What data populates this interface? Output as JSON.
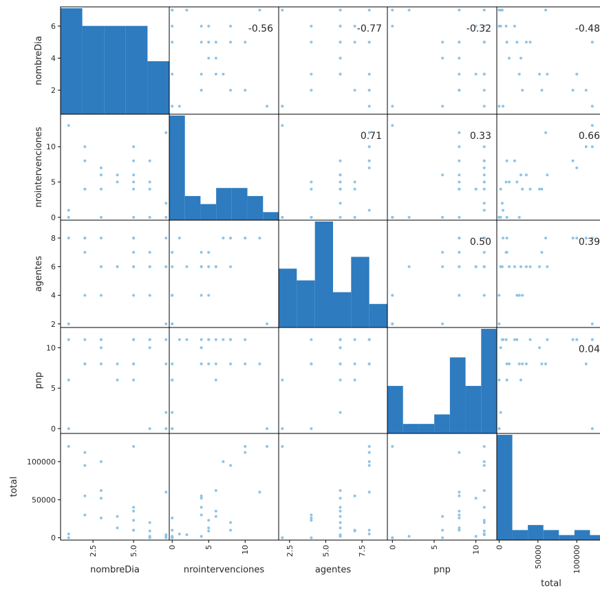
{
  "chart_data": {
    "type": "scatter_matrix",
    "variables": [
      "nombreDia",
      "nrointervenciones",
      "agentes",
      "pnp",
      "total"
    ],
    "colors": {
      "bar": "#2e7bbf",
      "point": "#8ec4e4",
      "frame": "#000000"
    },
    "ranges": [
      [
        0.5,
        7.2
      ],
      [
        -0.4,
        14.6
      ],
      [
        1.75,
        9.25
      ],
      [
        -0.6,
        12.5
      ],
      [
        -3000,
        137000
      ]
    ],
    "ticks": [
      [
        {
          "v": 2,
          "t": "2"
        },
        {
          "v": 4,
          "t": "4"
        },
        {
          "v": 6,
          "t": "6"
        }
      ],
      [
        {
          "v": 0,
          "t": "0"
        },
        {
          "v": 5,
          "t": "5"
        },
        {
          "v": 10,
          "t": "10"
        }
      ],
      [
        {
          "v": 2,
          "t": "2"
        },
        {
          "v": 4,
          "t": "4"
        },
        {
          "v": 6,
          "t": "6"
        },
        {
          "v": 8,
          "t": "8"
        }
      ],
      [
        {
          "v": 0,
          "t": "0"
        },
        {
          "v": 5,
          "t": "5"
        },
        {
          "v": 10,
          "t": "10"
        }
      ],
      [
        {
          "v": 0,
          "t": "0"
        },
        {
          "v": 50000,
          "t": "50000"
        },
        {
          "v": 100000,
          "t": "100000"
        }
      ]
    ],
    "xticks": [
      [
        {
          "v": 2.5,
          "t": "2.5"
        },
        {
          "v": 5.0,
          "t": "5.0"
        }
      ],
      [
        {
          "v": 0,
          "t": "0"
        },
        {
          "v": 5,
          "t": "5"
        },
        {
          "v": 10,
          "t": "10"
        }
      ],
      [
        {
          "v": 2.5,
          "t": "2.5"
        },
        {
          "v": 5.0,
          "t": "5.0"
        },
        {
          "v": 7.5,
          "t": "7.5"
        }
      ],
      [
        {
          "v": 0,
          "t": "0"
        },
        {
          "v": 5,
          "t": "5"
        },
        {
          "v": 10,
          "t": "10"
        }
      ],
      [
        {
          "v": 0,
          "t": "0"
        },
        {
          "v": 50000,
          "t": "50000"
        },
        {
          "v": 100000,
          "t": "100000"
        }
      ]
    ],
    "histograms": [
      [
        6,
        5,
        5,
        5,
        3
      ],
      [
        13,
        3,
        2,
        4,
        4,
        3,
        1
      ],
      [
        5,
        4,
        9,
        3,
        6,
        2
      ],
      [
        5,
        1,
        1,
        2,
        8,
        5,
        11
      ],
      [
        21,
        2,
        3,
        2,
        1,
        2,
        1
      ]
    ],
    "correlations": [
      {
        "row": 0,
        "col": 1,
        "text": "-0.56"
      },
      {
        "row": 0,
        "col": 2,
        "text": "-0.77"
      },
      {
        "row": 0,
        "col": 3,
        "text": "-0.32"
      },
      {
        "row": 0,
        "col": 4,
        "text": "-0.48"
      },
      {
        "row": 1,
        "col": 2,
        "text": "0.71"
      },
      {
        "row": 1,
        "col": 3,
        "text": "0.33"
      },
      {
        "row": 1,
        "col": 4,
        "text": "0.66"
      },
      {
        "row": 2,
        "col": 3,
        "text": "0.50"
      },
      {
        "row": 2,
        "col": 4,
        "text": "0.39"
      },
      {
        "row": 3,
        "col": 4,
        "text": "0.04"
      }
    ],
    "records": [
      [
        1,
        13,
        2,
        0,
        120000
      ],
      [
        1,
        1,
        8,
        11,
        5000
      ],
      [
        1,
        0,
        2,
        6,
        0
      ],
      [
        2,
        8,
        8,
        11,
        95000
      ],
      [
        2,
        10,
        8,
        8,
        112000
      ],
      [
        2,
        4,
        7,
        8,
        55000
      ],
      [
        2,
        4,
        4,
        8,
        30000
      ],
      [
        3,
        7,
        8,
        11,
        100000
      ],
      [
        3,
        6,
        6,
        11,
        62000
      ],
      [
        3,
        0,
        4,
        8,
        26000
      ],
      [
        3,
        4,
        6,
        10,
        52000
      ],
      [
        4,
        5,
        6,
        8,
        13000
      ],
      [
        4,
        6,
        6,
        6,
        28000
      ],
      [
        5,
        10,
        8,
        11,
        120000
      ],
      [
        5,
        8,
        8,
        8,
        10000
      ],
      [
        5,
        4,
        6,
        11,
        40000
      ],
      [
        5,
        6,
        6,
        8,
        35000
      ],
      [
        5,
        5,
        4,
        11,
        23000
      ],
      [
        5,
        0,
        7,
        6,
        10000
      ],
      [
        6,
        8,
        6,
        11,
        20000
      ],
      [
        6,
        0,
        4,
        0,
        0
      ],
      [
        6,
        4,
        6,
        10,
        2000
      ],
      [
        6,
        5,
        7,
        11,
        9000
      ],
      [
        7,
        12,
        8,
        8,
        60000
      ],
      [
        7,
        0,
        2,
        0,
        0
      ],
      [
        7,
        2,
        6,
        11,
        4000
      ],
      [
        7,
        0,
        6,
        2,
        2000
      ]
    ]
  }
}
